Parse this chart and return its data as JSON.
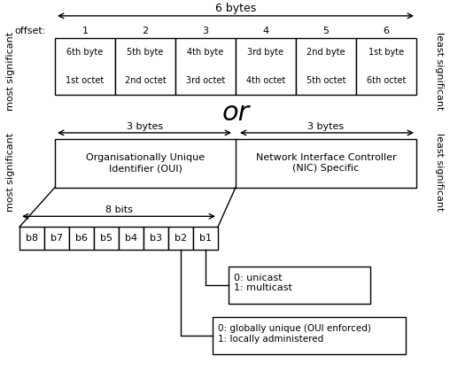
{
  "bg_color": "#ffffff",
  "text_color": "#000000",
  "six_bytes_label": "6 bytes",
  "offset_label": "offset:",
  "offsets": [
    "1",
    "2",
    "3",
    "4",
    "5",
    "6"
  ],
  "byte_labels": [
    "6th byte",
    "5th byte",
    "4th byte",
    "3rd byte",
    "2nd byte",
    "1st byte"
  ],
  "octet_labels": [
    "1st octet",
    "2nd octet",
    "3rd octet",
    "4th octet",
    "5th octet",
    "6th octet"
  ],
  "most_significant": "most significant",
  "least_significant": "least significant",
  "or_text": "or",
  "three_bytes_label": "3 bytes",
  "oui_text": "Organisationally Unique\nIdentifier (OUI)",
  "nic_text": "Network Interface Controller\n(NIC) Specific",
  "eight_bits_label": "8 bits",
  "bit_labels": [
    "b8",
    "b7",
    "b6",
    "b5",
    "b4",
    "b3",
    "b2",
    "b1"
  ],
  "unicast_text": "0: unicast\n1: multicast",
  "globally_text": "0: globally unique (OUI enforced)\n1: locally administered"
}
